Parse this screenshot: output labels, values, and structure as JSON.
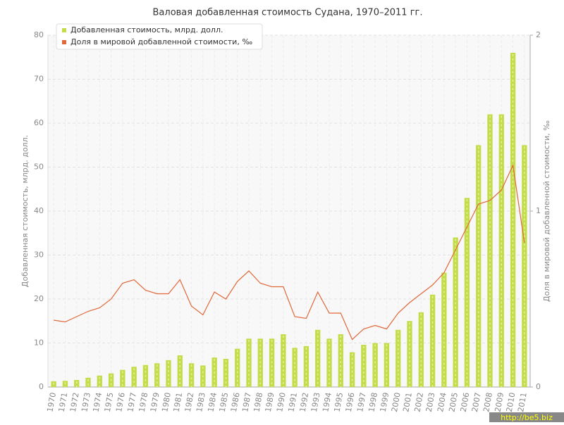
{
  "chart_data": {
    "type": "bar_line",
    "title": "Валовая добавленная стоимость Судана, 1970–2011 гг.",
    "y_label": "Добавленная стоимость, млрд. долл.",
    "y2_label": "Доля в мировой добавленной стоимости, ‰",
    "watermark": "http://be5.biz",
    "categories": [
      "1970",
      "1971",
      "1972",
      "1973",
      "1974",
      "1975",
      "1976",
      "1977",
      "1978",
      "1979",
      "1980",
      "1981",
      "1982",
      "1983",
      "1984",
      "1985",
      "1986",
      "1987",
      "1988",
      "1989",
      "1990",
      "1991",
      "1992",
      "1993",
      "1994",
      "1995",
      "1996",
      "1997",
      "1998",
      "1999",
      "2000",
      "2001",
      "2002",
      "2003",
      "2004",
      "2005",
      "2006",
      "2007",
      "2008",
      "2009",
      "2010",
      "2011"
    ],
    "series": [
      {
        "name": "Добавленная стоимость, млрд. долл.",
        "color": "#c2dc4a",
        "type": "bar",
        "values": [
          1.3,
          1.4,
          1.6,
          2.1,
          2.6,
          3.1,
          3.9,
          4.6,
          5.0,
          5.4,
          6.1,
          7.2,
          5.4,
          4.9,
          6.7,
          6.4,
          8.7,
          11,
          11,
          11,
          12,
          8.9,
          9.3,
          13,
          11,
          12,
          7.9,
          9.6,
          10,
          10,
          13,
          15,
          17,
          21,
          26,
          34,
          43,
          55,
          62,
          62,
          76,
          55
        ]
      },
      {
        "name": "Доля в мировой добавленной стоимости, ‰",
        "color": "#e0683a",
        "type": "line",
        "axis": "y2",
        "values": [
          0.38,
          0.37,
          0.4,
          0.43,
          0.45,
          0.5,
          0.59,
          0.61,
          0.55,
          0.53,
          0.53,
          0.61,
          0.46,
          0.41,
          0.54,
          0.5,
          0.6,
          0.66,
          0.59,
          0.57,
          0.57,
          0.4,
          0.39,
          0.54,
          0.42,
          0.42,
          0.27,
          0.33,
          0.35,
          0.33,
          0.42,
          0.48,
          0.53,
          0.58,
          0.65,
          0.78,
          0.91,
          1.04,
          1.06,
          1.12,
          1.26,
          0.82
        ]
      }
    ],
    "ylim": [
      0,
      80
    ],
    "yticks": [
      0,
      10,
      20,
      30,
      40,
      50,
      60,
      70,
      80
    ],
    "y2lim": [
      0,
      2
    ],
    "y2ticks": [
      0,
      1,
      2
    ],
    "grid": true
  }
}
